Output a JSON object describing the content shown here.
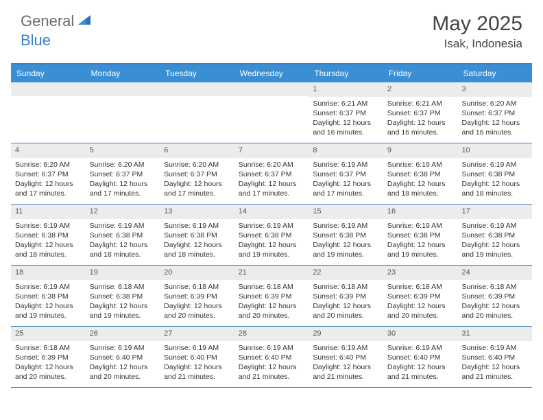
{
  "logo": {
    "text1": "General",
    "text2": "Blue"
  },
  "title": "May 2025",
  "location": "Isak, Indonesia",
  "colors": {
    "header_bg": "#3a8fd4",
    "border": "#3a7fc4",
    "daynum_bg": "#ececec",
    "text": "#333333",
    "logo_gray": "#6a6a6a",
    "logo_blue": "#3a7fc4"
  },
  "weekdays": [
    "Sunday",
    "Monday",
    "Tuesday",
    "Wednesday",
    "Thursday",
    "Friday",
    "Saturday"
  ],
  "weeks": [
    [
      {
        "day": "",
        "lines": []
      },
      {
        "day": "",
        "lines": []
      },
      {
        "day": "",
        "lines": []
      },
      {
        "day": "",
        "lines": []
      },
      {
        "day": "1",
        "lines": [
          "Sunrise: 6:21 AM",
          "Sunset: 6:37 PM",
          "Daylight: 12 hours",
          "and 16 minutes."
        ]
      },
      {
        "day": "2",
        "lines": [
          "Sunrise: 6:21 AM",
          "Sunset: 6:37 PM",
          "Daylight: 12 hours",
          "and 16 minutes."
        ]
      },
      {
        "day": "3",
        "lines": [
          "Sunrise: 6:20 AM",
          "Sunset: 6:37 PM",
          "Daylight: 12 hours",
          "and 16 minutes."
        ]
      }
    ],
    [
      {
        "day": "4",
        "lines": [
          "Sunrise: 6:20 AM",
          "Sunset: 6:37 PM",
          "Daylight: 12 hours",
          "and 17 minutes."
        ]
      },
      {
        "day": "5",
        "lines": [
          "Sunrise: 6:20 AM",
          "Sunset: 6:37 PM",
          "Daylight: 12 hours",
          "and 17 minutes."
        ]
      },
      {
        "day": "6",
        "lines": [
          "Sunrise: 6:20 AM",
          "Sunset: 6:37 PM",
          "Daylight: 12 hours",
          "and 17 minutes."
        ]
      },
      {
        "day": "7",
        "lines": [
          "Sunrise: 6:20 AM",
          "Sunset: 6:37 PM",
          "Daylight: 12 hours",
          "and 17 minutes."
        ]
      },
      {
        "day": "8",
        "lines": [
          "Sunrise: 6:19 AM",
          "Sunset: 6:37 PM",
          "Daylight: 12 hours",
          "and 17 minutes."
        ]
      },
      {
        "day": "9",
        "lines": [
          "Sunrise: 6:19 AM",
          "Sunset: 6:38 PM",
          "Daylight: 12 hours",
          "and 18 minutes."
        ]
      },
      {
        "day": "10",
        "lines": [
          "Sunrise: 6:19 AM",
          "Sunset: 6:38 PM",
          "Daylight: 12 hours",
          "and 18 minutes."
        ]
      }
    ],
    [
      {
        "day": "11",
        "lines": [
          "Sunrise: 6:19 AM",
          "Sunset: 6:38 PM",
          "Daylight: 12 hours",
          "and 18 minutes."
        ]
      },
      {
        "day": "12",
        "lines": [
          "Sunrise: 6:19 AM",
          "Sunset: 6:38 PM",
          "Daylight: 12 hours",
          "and 18 minutes."
        ]
      },
      {
        "day": "13",
        "lines": [
          "Sunrise: 6:19 AM",
          "Sunset: 6:38 PM",
          "Daylight: 12 hours",
          "and 18 minutes."
        ]
      },
      {
        "day": "14",
        "lines": [
          "Sunrise: 6:19 AM",
          "Sunset: 6:38 PM",
          "Daylight: 12 hours",
          "and 19 minutes."
        ]
      },
      {
        "day": "15",
        "lines": [
          "Sunrise: 6:19 AM",
          "Sunset: 6:38 PM",
          "Daylight: 12 hours",
          "and 19 minutes."
        ]
      },
      {
        "day": "16",
        "lines": [
          "Sunrise: 6:19 AM",
          "Sunset: 6:38 PM",
          "Daylight: 12 hours",
          "and 19 minutes."
        ]
      },
      {
        "day": "17",
        "lines": [
          "Sunrise: 6:19 AM",
          "Sunset: 6:38 PM",
          "Daylight: 12 hours",
          "and 19 minutes."
        ]
      }
    ],
    [
      {
        "day": "18",
        "lines": [
          "Sunrise: 6:19 AM",
          "Sunset: 6:38 PM",
          "Daylight: 12 hours",
          "and 19 minutes."
        ]
      },
      {
        "day": "19",
        "lines": [
          "Sunrise: 6:18 AM",
          "Sunset: 6:38 PM",
          "Daylight: 12 hours",
          "and 19 minutes."
        ]
      },
      {
        "day": "20",
        "lines": [
          "Sunrise: 6:18 AM",
          "Sunset: 6:39 PM",
          "Daylight: 12 hours",
          "and 20 minutes."
        ]
      },
      {
        "day": "21",
        "lines": [
          "Sunrise: 6:18 AM",
          "Sunset: 6:39 PM",
          "Daylight: 12 hours",
          "and 20 minutes."
        ]
      },
      {
        "day": "22",
        "lines": [
          "Sunrise: 6:18 AM",
          "Sunset: 6:39 PM",
          "Daylight: 12 hours",
          "and 20 minutes."
        ]
      },
      {
        "day": "23",
        "lines": [
          "Sunrise: 6:18 AM",
          "Sunset: 6:39 PM",
          "Daylight: 12 hours",
          "and 20 minutes."
        ]
      },
      {
        "day": "24",
        "lines": [
          "Sunrise: 6:18 AM",
          "Sunset: 6:39 PM",
          "Daylight: 12 hours",
          "and 20 minutes."
        ]
      }
    ],
    [
      {
        "day": "25",
        "lines": [
          "Sunrise: 6:18 AM",
          "Sunset: 6:39 PM",
          "Daylight: 12 hours",
          "and 20 minutes."
        ]
      },
      {
        "day": "26",
        "lines": [
          "Sunrise: 6:19 AM",
          "Sunset: 6:40 PM",
          "Daylight: 12 hours",
          "and 20 minutes."
        ]
      },
      {
        "day": "27",
        "lines": [
          "Sunrise: 6:19 AM",
          "Sunset: 6:40 PM",
          "Daylight: 12 hours",
          "and 21 minutes."
        ]
      },
      {
        "day": "28",
        "lines": [
          "Sunrise: 6:19 AM",
          "Sunset: 6:40 PM",
          "Daylight: 12 hours",
          "and 21 minutes."
        ]
      },
      {
        "day": "29",
        "lines": [
          "Sunrise: 6:19 AM",
          "Sunset: 6:40 PM",
          "Daylight: 12 hours",
          "and 21 minutes."
        ]
      },
      {
        "day": "30",
        "lines": [
          "Sunrise: 6:19 AM",
          "Sunset: 6:40 PM",
          "Daylight: 12 hours",
          "and 21 minutes."
        ]
      },
      {
        "day": "31",
        "lines": [
          "Sunrise: 6:19 AM",
          "Sunset: 6:40 PM",
          "Daylight: 12 hours",
          "and 21 minutes."
        ]
      }
    ]
  ]
}
